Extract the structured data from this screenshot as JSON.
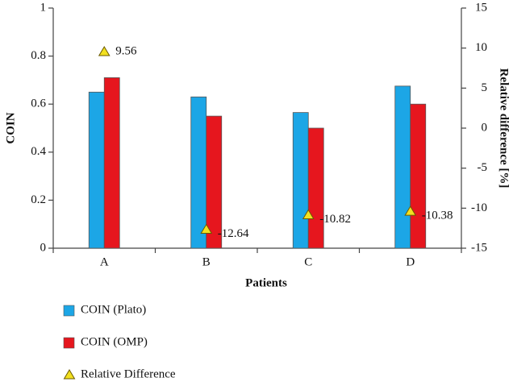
{
  "chart_data": {
    "type": "bar",
    "x_label": "Patients",
    "y_label": "COIN",
    "y2_label": "Relative difference [%]",
    "categories": [
      "A",
      "B",
      "C",
      "D"
    ],
    "series": [
      {
        "name": "COIN (Plato)",
        "color": "#1ca6e6",
        "values": [
          0.65,
          0.63,
          0.565,
          0.675
        ]
      },
      {
        "name": "COIN (OMP)",
        "color": "#e6161e",
        "values": [
          0.71,
          0.55,
          0.5,
          0.6
        ]
      },
      {
        "name": "Relative Difference",
        "color": "#f2e020",
        "axis": "y2",
        "marker": "triangle",
        "values": [
          9.56,
          -12.64,
          -10.82,
          -10.38
        ]
      }
    ],
    "ylim": [
      0,
      1
    ],
    "yticks": [
      0,
      0.2,
      0.4,
      0.6,
      0.8,
      1
    ],
    "y2lim": [
      -15,
      15
    ],
    "y2ticks": [
      -15,
      -10,
      -5,
      0,
      5,
      10,
      15
    ],
    "grid": false,
    "legend": "bottom"
  }
}
